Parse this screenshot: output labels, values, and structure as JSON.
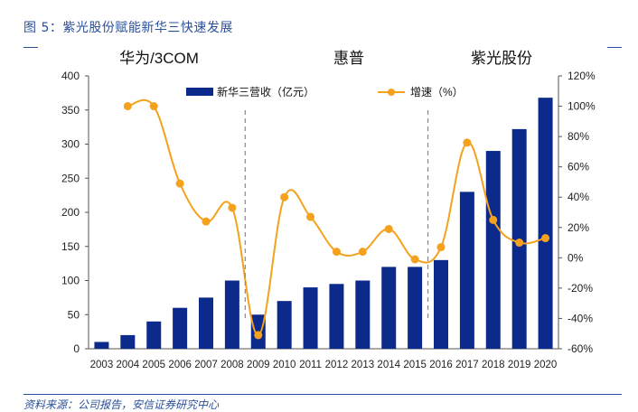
{
  "header": {
    "title": "图 5：紫光股份赋能新华三快速发展"
  },
  "footer": {
    "source": "资料来源：公司报告，安信证券研究中心"
  },
  "chart_data": {
    "type": "bar+line",
    "categories": [
      "2003",
      "2004",
      "2005",
      "2006",
      "2007",
      "2008",
      "2009",
      "2010",
      "2011",
      "2012",
      "2013",
      "2014",
      "2015",
      "2016",
      "2017",
      "2018",
      "2019",
      "2020"
    ],
    "series": [
      {
        "name": "新华三营收（亿元）",
        "type": "bar",
        "axis": "left",
        "color": "#0c2a8c",
        "values": [
          10,
          20,
          40,
          60,
          75,
          100,
          50,
          70,
          90,
          95,
          100,
          120,
          120,
          130,
          230,
          290,
          322,
          368
        ]
      },
      {
        "name": "增速（%）",
        "type": "line",
        "axis": "right",
        "color": "#f4a21d",
        "values": [
          null,
          100,
          100,
          49,
          24,
          33,
          -51,
          40,
          27,
          4,
          4,
          19,
          -1,
          7,
          76,
          25,
          10,
          13
        ]
      }
    ],
    "y_left": {
      "min": 0,
      "max": 400,
      "ticks": [
        "0",
        "50",
        "100",
        "150",
        "200",
        "250",
        "300",
        "350",
        "400"
      ]
    },
    "y_right": {
      "min": -60,
      "max": 120,
      "ticks": [
        "-60%",
        "-40%",
        "-20%",
        "0%",
        "20%",
        "40%",
        "60%",
        "80%",
        "100%",
        "120%"
      ]
    },
    "annotations": [
      {
        "label": "华为/3COM"
      },
      {
        "label": "惠普"
      },
      {
        "label": "紫光股份"
      }
    ],
    "dividers_after_index": [
      5,
      12
    ],
    "grid": false,
    "legend_position": "top"
  }
}
